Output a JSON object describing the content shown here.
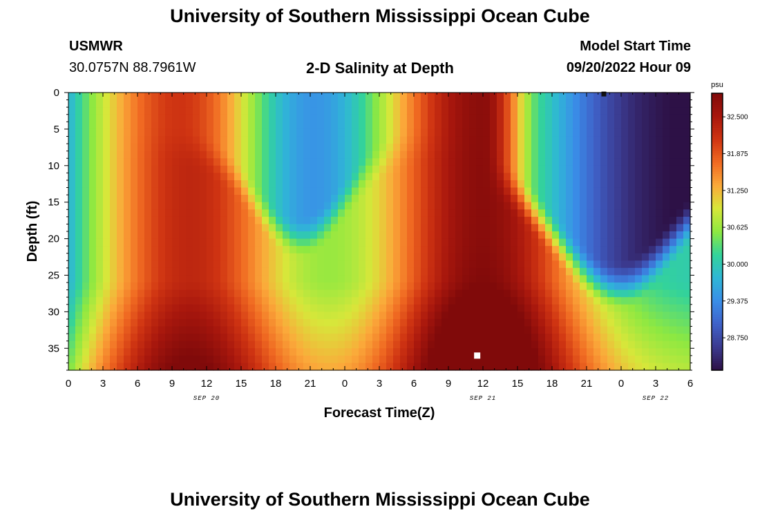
{
  "page": {
    "title": "University of Southern Mississippi Ocean Cube",
    "title_repeat": "University of Southern Mississippi Ocean Cube",
    "station": "USMWR",
    "coordinates": "30.0757N  88.7961W",
    "subtitle": "2-D Salinity at Depth",
    "model_label": "Model Start Time",
    "model_time": "09/20/2022 Hour 09"
  },
  "colors": {
    "colormap": [
      "#2d1146",
      "#3b3a8f",
      "#3f62c9",
      "#3a8ee8",
      "#2fb7d6",
      "#33d39a",
      "#8ee841",
      "#d7e73a",
      "#fba93a",
      "#f06a22",
      "#cf3412",
      "#a8170d",
      "#800a0a"
    ],
    "marker_max": "#ffffff",
    "marker_min": "#111111"
  },
  "chart_data": {
    "type": "heatmap",
    "xlabel": "Forecast Time(Z)",
    "ylabel": "Depth (ft)",
    "x_range_hours": [
      0,
      54
    ],
    "x_tick_labels": [
      "0",
      "3",
      "6",
      "9",
      "12",
      "15",
      "18",
      "21",
      "0",
      "3",
      "6",
      "9",
      "12",
      "15",
      "18",
      "21",
      "0",
      "3",
      "6"
    ],
    "date_labels": [
      {
        "text": "SEP 20",
        "hour": 12
      },
      {
        "text": "SEP 21",
        "hour": 36
      },
      {
        "text": "SEP 22",
        "hour": 51
      }
    ],
    "ylim": [
      0,
      38
    ],
    "y_ticks": [
      0,
      5,
      10,
      15,
      20,
      25,
      30,
      35
    ],
    "y_tick_labels": [
      "0",
      "5",
      "10",
      "15",
      "20",
      "25",
      "30",
      "35"
    ],
    "colorbar": {
      "unit": "psu",
      "vmin": 28.2,
      "vmax": 32.9,
      "ticks": [
        "32.500",
        "31.875",
        "31.250",
        "30.625",
        "30.000",
        "29.375",
        "28.750"
      ]
    },
    "field_description": "salinity (psu) vs forecast hour and depth",
    "markers": [
      {
        "type": "max",
        "hour": 35.5,
        "depth": 36.0
      },
      {
        "type": "min",
        "hour": 46.5,
        "depth": 0.2
      }
    ]
  }
}
